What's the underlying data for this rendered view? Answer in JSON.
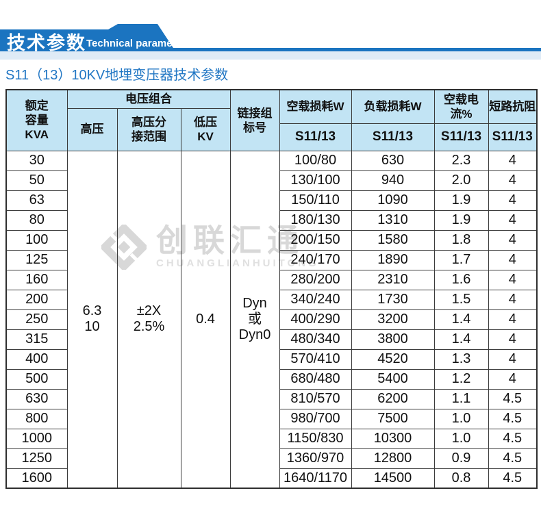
{
  "colors": {
    "banner_blue": "#1b74c0",
    "banner_strip": "#dcedf8",
    "header_bg": "#c2e4f4",
    "title_blue": "#2277c4",
    "border": "#3b3b3b",
    "watermark_gray": "#d8d8d8"
  },
  "banner": {
    "title": "技术参数",
    "subtitle": "Technical parameter"
  },
  "page_title": "S11（13）10KV地埋变压器技术参数",
  "watermark": {
    "cn": "创联汇通",
    "en": "CHUANGLIANHUITONG"
  },
  "table": {
    "header": {
      "capacity": "额定\n容量\nKVA",
      "voltage_group": "电压组合",
      "hv": "高压",
      "tap_range": "高压分\n接范围",
      "lv": "低压\nKV",
      "connection": "链接组\n标号",
      "noload_loss": "空载损耗W",
      "load_loss": "负载损耗W",
      "noload_current": "空载电流%",
      "impedance": "短路抗阻",
      "model": "S11/13"
    },
    "merged": {
      "hv": "6.3\n10",
      "tap": "±2X\n2.5%",
      "lv": "0.4",
      "connection": "Dyn\n或\nDyn0"
    },
    "rows": [
      {
        "kva": "30",
        "noload": "100/80",
        "load": "630",
        "current": "2.3",
        "impedance": "4"
      },
      {
        "kva": "50",
        "noload": "130/100",
        "load": "940",
        "current": "2.0",
        "impedance": "4"
      },
      {
        "kva": "63",
        "noload": "150/110",
        "load": "1090",
        "current": "1.9",
        "impedance": "4"
      },
      {
        "kva": "80",
        "noload": "180/130",
        "load": "1310",
        "current": "1.9",
        "impedance": "4"
      },
      {
        "kva": "100",
        "noload": "200/150",
        "load": "1580",
        "current": "1.8",
        "impedance": "4"
      },
      {
        "kva": "125",
        "noload": "240/170",
        "load": "1890",
        "current": "1.7",
        "impedance": "4"
      },
      {
        "kva": "160",
        "noload": "280/200",
        "load": "2310",
        "current": "1.6",
        "impedance": "4"
      },
      {
        "kva": "200",
        "noload": "340/240",
        "load": "1730",
        "current": "1.5",
        "impedance": "4"
      },
      {
        "kva": "250",
        "noload": "400/290",
        "load": "3200",
        "current": "1.4",
        "impedance": "4"
      },
      {
        "kva": "315",
        "noload": "480/340",
        "load": "3800",
        "current": "1.4",
        "impedance": "4"
      },
      {
        "kva": "400",
        "noload": "570/410",
        "load": "4520",
        "current": "1.3",
        "impedance": "4"
      },
      {
        "kva": "500",
        "noload": "680/480",
        "load": "5400",
        "current": "1.2",
        "impedance": "4"
      },
      {
        "kva": "630",
        "noload": "810/570",
        "load": "6200",
        "current": "1.1",
        "impedance": "4.5"
      },
      {
        "kva": "800",
        "noload": "980/700",
        "load": "7500",
        "current": "1.0",
        "impedance": "4.5"
      },
      {
        "kva": "1000",
        "noload": "1150/830",
        "load": "10300",
        "current": "1.0",
        "impedance": "4.5"
      },
      {
        "kva": "1250",
        "noload": "1360/970",
        "load": "12800",
        "current": "0.9",
        "impedance": "4.5"
      },
      {
        "kva": "1600",
        "noload": "1640/1170",
        "load": "14500",
        "current": "0.8",
        "impedance": "4.5"
      }
    ]
  }
}
